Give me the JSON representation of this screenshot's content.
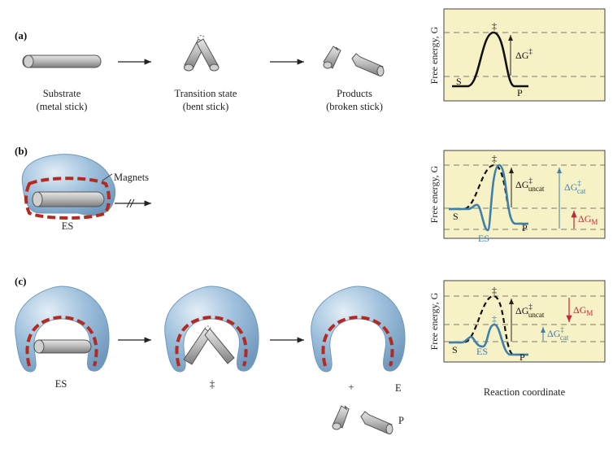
{
  "panels": {
    "a": {
      "label": "(a)",
      "substrate": "Substrate",
      "substrate_note": "(metal stick)",
      "transition": "Transition state",
      "transition_note": "(bent stick)",
      "products": "Products",
      "products_note": "(broken stick)",
      "graph": {
        "ylabel": "Free energy, G",
        "dagger": "‡",
        "dg": "ΔG",
        "dg_sup": "‡",
        "s": "S",
        "p": "P"
      }
    },
    "b": {
      "label": "(b)",
      "magnets": "Magnets",
      "es": "ES",
      "graph": {
        "ylabel": "Free energy, G",
        "dagger": "‡",
        "dg_uncat": "ΔG",
        "dg_uncat_sup": "‡",
        "dg_uncat_sub": "uncat",
        "dg_cat": "ΔG",
        "dg_cat_sup": "‡",
        "dg_cat_sub": "cat",
        "dg_m": "ΔG",
        "dg_m_sub": "M",
        "s": "S",
        "p": "P",
        "es": "ES"
      }
    },
    "c": {
      "label": "(c)",
      "es": "ES",
      "dagger": "‡",
      "plus": "+",
      "e": "E",
      "p": "P",
      "graph": {
        "ylabel": "Free energy, G",
        "dagger_uncat": "‡",
        "dagger_cat": "‡",
        "dg_uncat": "ΔG",
        "dg_uncat_sup": "‡",
        "dg_uncat_sub": "uncat",
        "dg_cat": "ΔG",
        "dg_cat_sup": "‡",
        "dg_cat_sub": "cat",
        "dg_m": "ΔG",
        "dg_m_sub": "M",
        "s": "S",
        "p": "P",
        "es": "ES"
      }
    }
  },
  "xlabel": "Reaction coordinate",
  "colors": {
    "panel_bg": "#f7f1c6",
    "enzyme": "#8fb4d3",
    "enzyme_light": "#c9dcec",
    "magnet": "#b32a20",
    "cat_curve": "#3f7faa",
    "m_arrow": "#c0283a",
    "stick": "#a9a9a9"
  }
}
